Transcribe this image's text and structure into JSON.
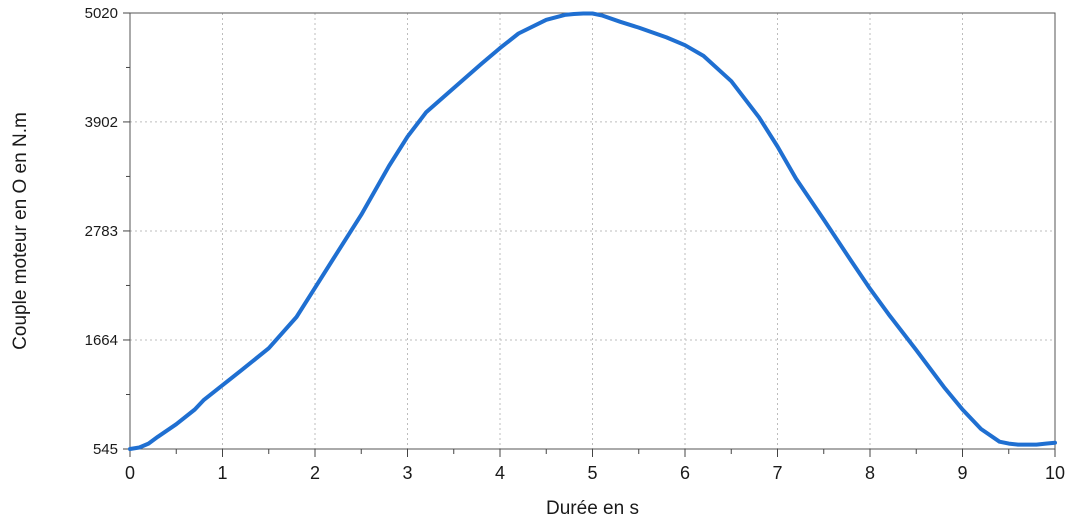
{
  "chart_data": {
    "type": "line",
    "title": "",
    "xlabel": "Durée en s",
    "ylabel": "Couple moteur en O en N.m",
    "xlim": [
      0,
      10
    ],
    "ylim": [
      545,
      5020
    ],
    "x_ticks": [
      0,
      1,
      2,
      3,
      4,
      5,
      6,
      7,
      8,
      9,
      10
    ],
    "x_tick_labels": [
      "0",
      "1",
      "2",
      "3",
      "4",
      "5",
      "6",
      "7",
      "8",
      "9",
      "10"
    ],
    "y_ticks": [
      545,
      1664,
      2783,
      3902,
      5020
    ],
    "y_tick_labels": [
      "545",
      "1664",
      "2783",
      "3902",
      "5020"
    ],
    "grid": true,
    "legend": "none",
    "series": [
      {
        "color": "#1f6fd1",
        "x": [
          0,
          0.1,
          0.2,
          0.3,
          0.5,
          0.7,
          0.8,
          1.0,
          1.2,
          1.5,
          1.8,
          2.0,
          2.2,
          2.5,
          2.8,
          3.0,
          3.2,
          3.5,
          3.8,
          4.0,
          4.2,
          4.5,
          4.7,
          4.8,
          4.9,
          5.0,
          5.1,
          5.3,
          5.5,
          5.8,
          6.0,
          6.2,
          6.5,
          6.8,
          7.0,
          7.2,
          7.5,
          7.8,
          8.0,
          8.2,
          8.5,
          8.8,
          9.0,
          9.2,
          9.4,
          9.5,
          9.6,
          9.8,
          9.9,
          10.0
        ],
        "y": [
          545,
          560,
          600,
          670,
          800,
          950,
          1050,
          1200,
          1350,
          1580,
          1900,
          2200,
          2500,
          2950,
          3450,
          3750,
          4000,
          4250,
          4500,
          4660,
          4810,
          4950,
          5000,
          5010,
          5015,
          5015,
          4995,
          4930,
          4870,
          4770,
          4690,
          4580,
          4320,
          3950,
          3650,
          3320,
          2900,
          2470,
          2190,
          1930,
          1560,
          1180,
          950,
          750,
          620,
          600,
          590,
          590,
          600,
          610
        ]
      }
    ]
  }
}
